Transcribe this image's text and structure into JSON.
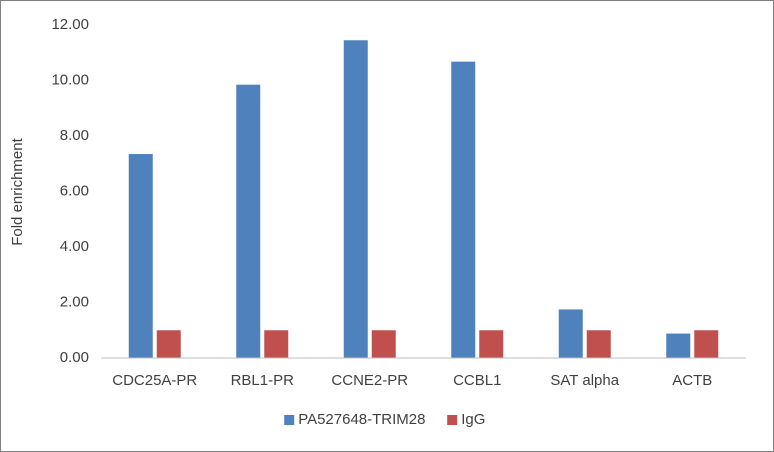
{
  "chart_data": {
    "type": "bar",
    "y_label": "Fold enrichment",
    "categories": [
      "CDC25A-PR",
      "RBL1-PR",
      "CCNE2-PR",
      "CCBL1",
      "SAT alpha",
      "ACTB"
    ],
    "series": [
      {
        "name": "PA527648-TRIM28",
        "color": "#4f81bd",
        "values": [
          7.35,
          9.85,
          11.45,
          10.68,
          1.75,
          0.88
        ]
      },
      {
        "name": "IgG",
        "color": "#c0504d",
        "values": [
          1.0,
          1.0,
          1.0,
          1.0,
          1.0,
          1.0
        ]
      }
    ],
    "ylim": [
      0,
      12
    ],
    "yticks": [
      {
        "value": 0,
        "label": "0.00"
      },
      {
        "value": 2,
        "label": "2.00"
      },
      {
        "value": 4,
        "label": "4.00"
      },
      {
        "value": 6,
        "label": "6.00"
      },
      {
        "value": 8,
        "label": "8.00"
      },
      {
        "value": 10,
        "label": "10.00"
      },
      {
        "value": 12,
        "label": "12.00"
      }
    ],
    "grid": false,
    "legend_position": "bottom"
  }
}
